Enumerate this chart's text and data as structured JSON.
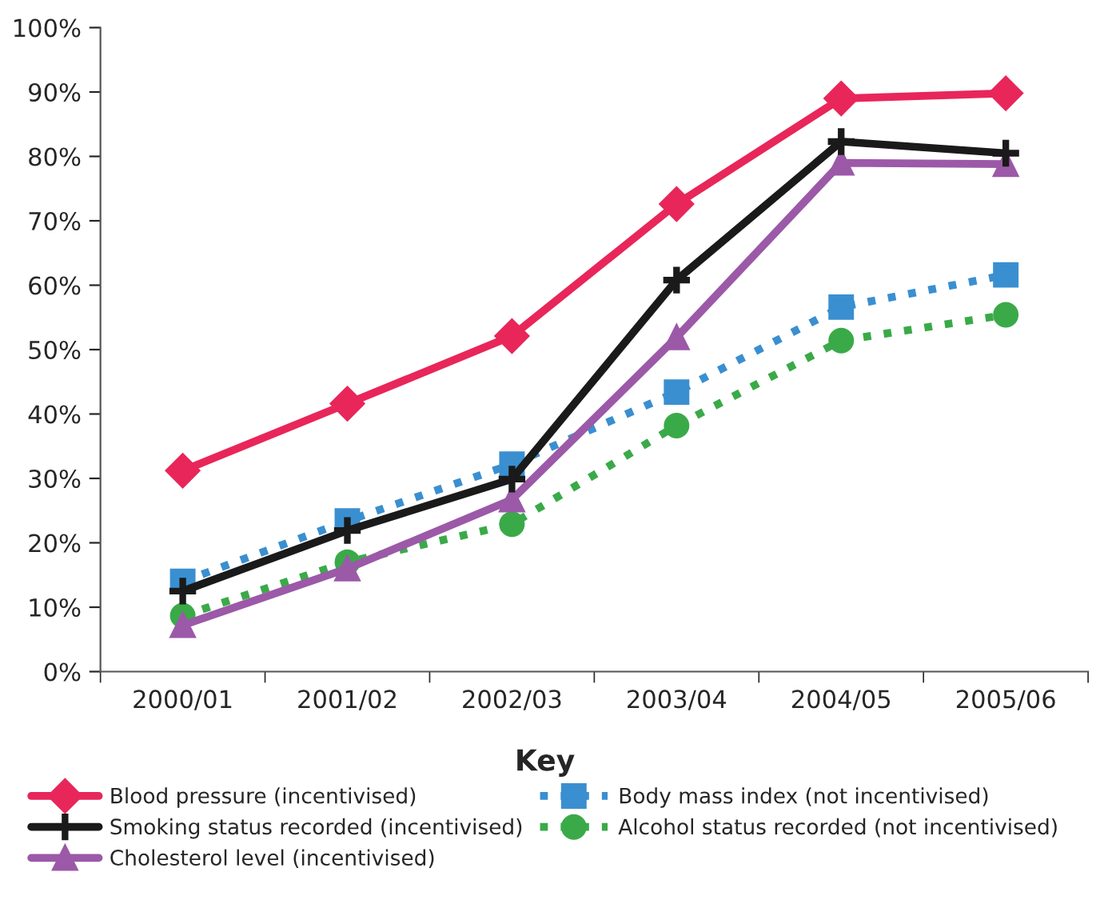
{
  "chart_data": {
    "type": "line",
    "legend_title": "Key",
    "legend": "bottom",
    "categories": [
      "2000/01",
      "2001/02",
      "2002/03",
      "2003/04",
      "2004/05",
      "2005/06"
    ],
    "ylim": [
      0,
      100
    ],
    "yticks": [
      {
        "value": 0,
        "label": "0%"
      },
      {
        "value": 10,
        "label": "10%"
      },
      {
        "value": 20,
        "label": "20%"
      },
      {
        "value": 30,
        "label": "30%"
      },
      {
        "value": 40,
        "label": "40%"
      },
      {
        "value": 50,
        "label": "50%"
      },
      {
        "value": 60,
        "label": "60%"
      },
      {
        "value": 70,
        "label": "70%"
      },
      {
        "value": 80,
        "label": "80%"
      },
      {
        "value": 90,
        "label": "90%"
      },
      {
        "value": 100,
        "label": "100%"
      }
    ],
    "grid": false,
    "series": [
      {
        "name": "Blood pressure (incentivised)",
        "color": "#e8265a",
        "marker": "diamond",
        "line_style": "solid",
        "values": [
          31.2,
          41.6,
          52.1,
          72.6,
          89.0,
          89.8
        ]
      },
      {
        "name": "Smoking status recorded (incentivised)",
        "color": "#1a1a1a",
        "marker": "cross",
        "line_style": "solid",
        "values": [
          12.5,
          21.9,
          29.9,
          60.8,
          82.3,
          80.5
        ]
      },
      {
        "name": "Cholesterol level (incentivised)",
        "color": "#9b59a8",
        "marker": "triangle",
        "line_style": "solid",
        "values": [
          7.2,
          16.0,
          26.7,
          51.9,
          79.0,
          78.8
        ]
      },
      {
        "name": "Body mass index (not incentivised)",
        "color": "#3a8fd0",
        "marker": "square",
        "line_style": "dotted",
        "values": [
          14.0,
          23.4,
          32.2,
          43.4,
          56.6,
          61.6
        ]
      },
      {
        "name": "Alcohol status recorded (not incentivised)",
        "color": "#3aaa48",
        "marker": "circle",
        "line_style": "dotted",
        "values": [
          8.7,
          17.0,
          22.9,
          38.2,
          51.4,
          55.4
        ]
      }
    ]
  }
}
